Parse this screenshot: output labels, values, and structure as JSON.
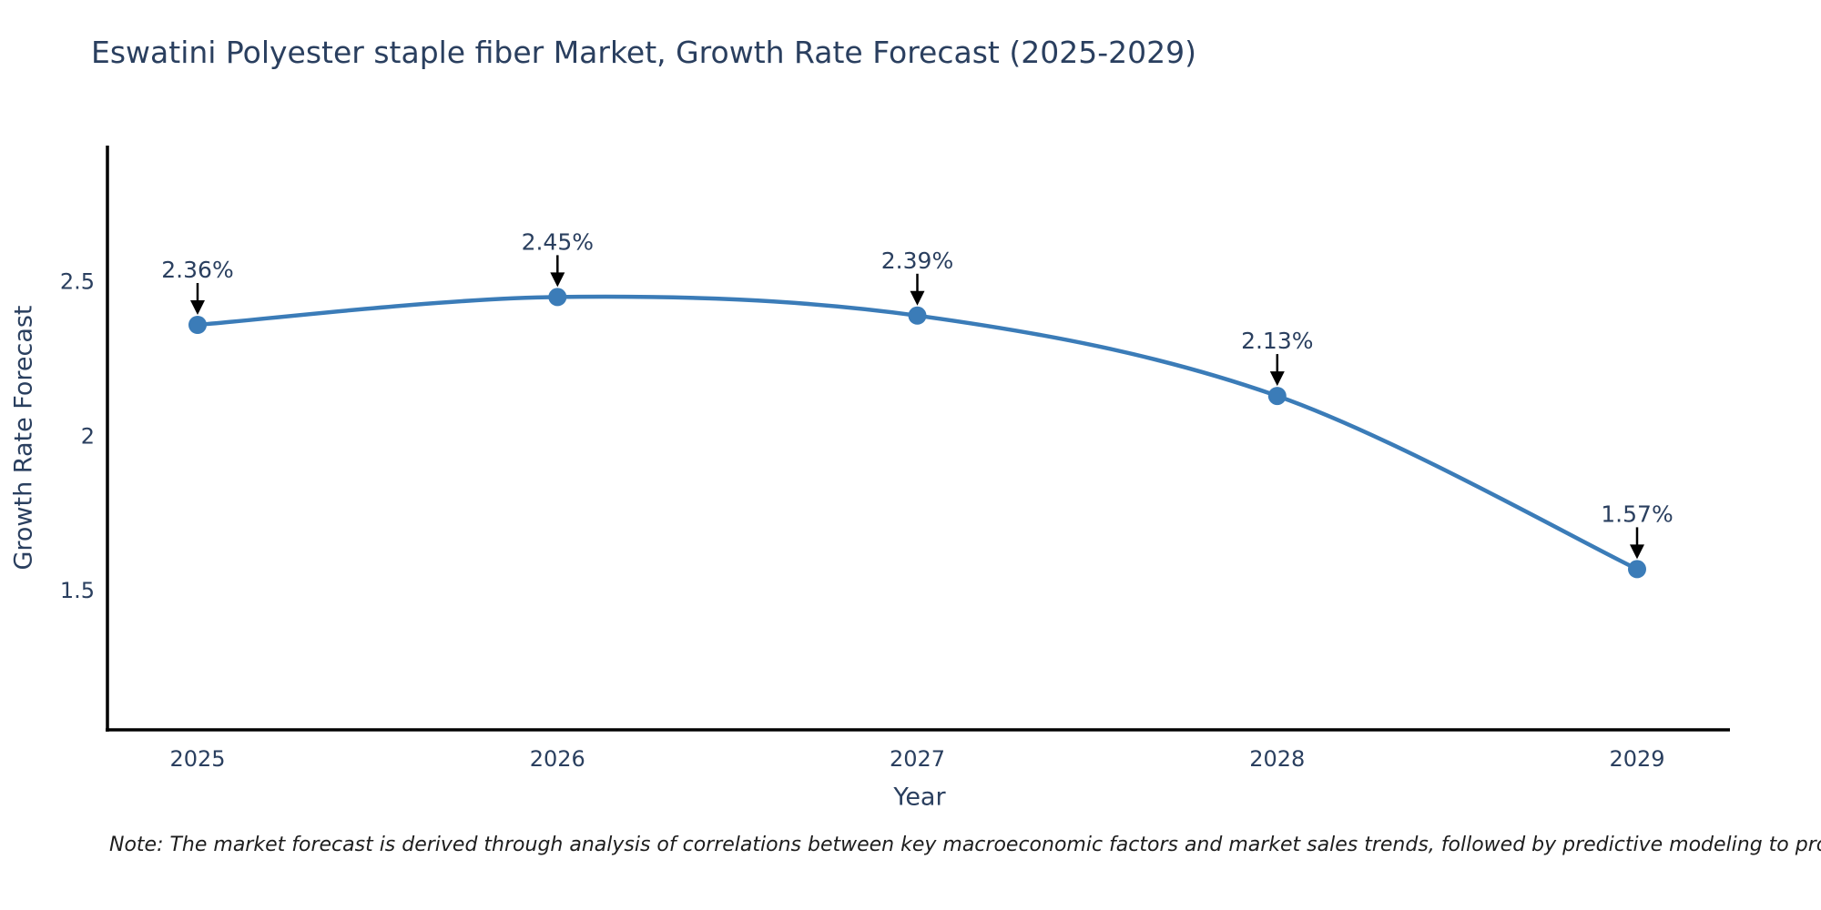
{
  "title": "Eswatini Polyester staple fiber Market, Growth Rate Forecast (2025-2029)",
  "footnote": "Note: The market forecast is derived through analysis of correlations between key macroeconomic factors and market sales trends, followed by predictive modeling to project future sales",
  "colors": {
    "line": "#3b7cb8",
    "marker": "#3b7cb8",
    "arrow": "#000000",
    "axis": "#000000",
    "text": "#2a3f5f"
  },
  "chart_data": {
    "type": "line",
    "title": "Eswatini Polyester staple fiber Market, Growth Rate Forecast (2025-2029)",
    "x": [
      2025,
      2026,
      2027,
      2028,
      2029
    ],
    "values": [
      2.36,
      2.45,
      2.39,
      2.13,
      1.57
    ],
    "point_labels": [
      "2.36%",
      "2.45%",
      "2.39%",
      "2.13%",
      "1.57%"
    ],
    "xlabel": "Year",
    "ylabel": "Growth Rate Forecast",
    "yticks": [
      2.5,
      2,
      1.5
    ],
    "ylim": [
      1.05,
      2.94
    ],
    "grid": false,
    "legend_position": "none",
    "line_shape": "spline",
    "marker_shape": "circle",
    "annotation_style": "label-with-down-arrow"
  }
}
